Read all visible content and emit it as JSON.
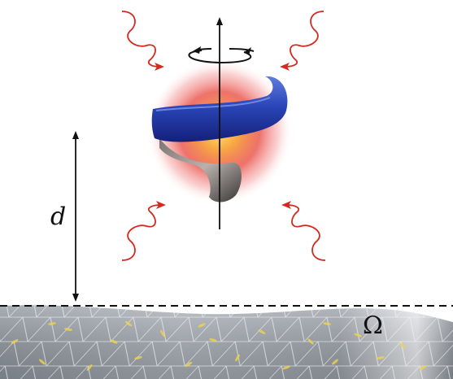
{
  "labels": {
    "distance": "d",
    "surface": "Ω"
  },
  "colors": {
    "photon_wave": "#d42a1e",
    "helix_blue": "#2a46b8",
    "glow_red": "#e8443a",
    "glow_yellow": "#f7c23a",
    "surface_gray": "#9aa0a8",
    "surface_mesh": "#e9edf2",
    "dipole_yellow": "#f2d34a",
    "ink": "#111111"
  },
  "elements": {
    "rotation_arrow": "rotation-arrow-icon",
    "wave_arrows": [
      "photon-wave-icon",
      "photon-wave-icon",
      "photon-wave-icon",
      "photon-wave-icon"
    ]
  }
}
